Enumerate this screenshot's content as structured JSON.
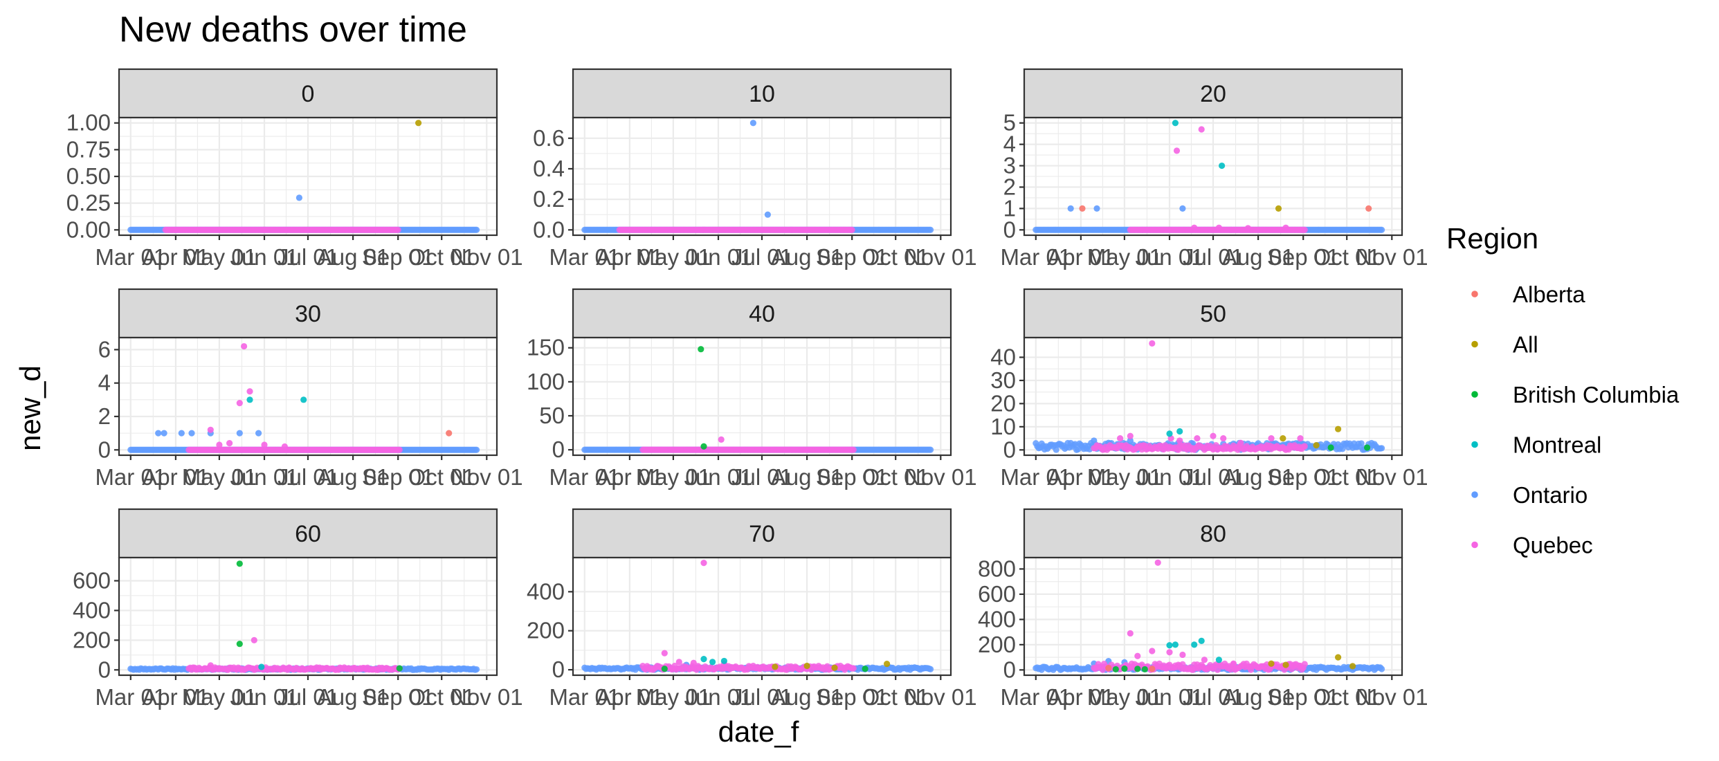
{
  "chart_data": {
    "type": "scatter",
    "title": "New deaths over time",
    "xlabel": "date_f",
    "ylabel": "new_d",
    "x_ticks": [
      "Mar 01",
      "Apr 01",
      "May 01",
      "Jun 01",
      "Jul 01",
      "Aug 01",
      "Sep 01",
      "Oct 01",
      "Nov 01"
    ],
    "x_range": [
      "2020-02-22",
      "2020-11-08"
    ],
    "legend": {
      "title": "Region",
      "position": "right",
      "entries": [
        {
          "name": "Alberta",
          "color": "#F8766D"
        },
        {
          "name": "All",
          "color": "#B79F00"
        },
        {
          "name": "British Columbia",
          "color": "#00BA38"
        },
        {
          "name": "Montreal",
          "color": "#00BFC4"
        },
        {
          "name": "Ontario",
          "color": "#619CFF"
        },
        {
          "name": "Quebec",
          "color": "#F564E3"
        }
      ]
    },
    "facets": [
      {
        "label": "0",
        "ylim": [
          -0.05,
          1.05
        ],
        "y_ticks": [
          "0.00",
          "0.25",
          "0.50",
          "0.75",
          "1.00"
        ],
        "y_tick_values": [
          0,
          0.25,
          0.5,
          0.75,
          1.0
        ],
        "series": [
          {
            "name": "Ontario",
            "baseline": {
              "value": 0,
              "from": "2020-03-01",
              "to": "2020-10-25"
            },
            "points": [
              {
                "x": "2020-06-25",
                "y": 0.3
              }
            ]
          },
          {
            "name": "Quebec",
            "baseline": {
              "value": 0,
              "from": "2020-03-25",
              "to": "2020-09-01"
            },
            "points": []
          },
          {
            "name": "All",
            "points": [
              {
                "x": "2020-09-15",
                "y": 1
              }
            ]
          }
        ]
      },
      {
        "label": "10",
        "ylim": [
          -0.035,
          0.735
        ],
        "y_ticks": [
          "0.0",
          "0.2",
          "0.4",
          "0.6"
        ],
        "y_tick_values": [
          0,
          0.2,
          0.4,
          0.6
        ],
        "series": [
          {
            "name": "Ontario",
            "baseline": {
              "value": 0,
              "from": "2020-03-01",
              "to": "2020-10-25"
            },
            "points": [
              {
                "x": "2020-06-25",
                "y": 0.7
              },
              {
                "x": "2020-07-05",
                "y": 0.1
              }
            ]
          },
          {
            "name": "Quebec",
            "baseline": {
              "value": 0,
              "from": "2020-03-25",
              "to": "2020-09-01"
            },
            "points": []
          }
        ]
      },
      {
        "label": "20",
        "ylim": [
          -0.25,
          5.25
        ],
        "y_ticks": [
          "0",
          "1",
          "2",
          "3",
          "4",
          "5"
        ],
        "y_tick_values": [
          0,
          1,
          2,
          3,
          4,
          5
        ],
        "series": [
          {
            "name": "Ontario",
            "baseline": {
              "value": 0,
              "from": "2020-03-01",
              "to": "2020-10-25"
            },
            "points": [
              {
                "x": "2020-03-25",
                "y": 1
              },
              {
                "x": "2020-04-12",
                "y": 1
              },
              {
                "x": "2020-06-10",
                "y": 1
              }
            ]
          },
          {
            "name": "Alberta",
            "points": [
              {
                "x": "2020-04-02",
                "y": 1
              },
              {
                "x": "2020-10-16",
                "y": 1
              }
            ]
          },
          {
            "name": "Montreal",
            "points": [
              {
                "x": "2020-06-05",
                "y": 5
              },
              {
                "x": "2020-07-07",
                "y": 3
              }
            ]
          },
          {
            "name": "Quebec",
            "baseline": {
              "value": 0,
              "from": "2020-05-05",
              "to": "2020-09-02"
            },
            "points": [
              {
                "x": "2020-06-06",
                "y": 3.7
              },
              {
                "x": "2020-06-23",
                "y": 4.7
              },
              {
                "x": "2020-06-18",
                "y": 0.1
              },
              {
                "x": "2020-07-05",
                "y": 0.1
              },
              {
                "x": "2020-07-25",
                "y": 0.08
              },
              {
                "x": "2020-08-20",
                "y": 0.1
              }
            ]
          },
          {
            "name": "All",
            "points": [
              {
                "x": "2020-08-15",
                "y": 1
              }
            ]
          }
        ]
      },
      {
        "label": "30",
        "ylim": [
          -0.32,
          6.72
        ],
        "y_ticks": [
          "0",
          "2",
          "4",
          "6"
        ],
        "y_tick_values": [
          0,
          2,
          4,
          6
        ],
        "series": [
          {
            "name": "Ontario",
            "baseline": {
              "value": 0,
              "from": "2020-03-01",
              "to": "2020-10-25"
            },
            "points": [
              {
                "x": "2020-03-20",
                "y": 1
              },
              {
                "x": "2020-03-24",
                "y": 1
              },
              {
                "x": "2020-04-05",
                "y": 1
              },
              {
                "x": "2020-04-12",
                "y": 1
              },
              {
                "x": "2020-04-25",
                "y": 1
              },
              {
                "x": "2020-05-15",
                "y": 1
              },
              {
                "x": "2020-05-28",
                "y": 1
              }
            ]
          },
          {
            "name": "Quebec",
            "baseline": {
              "value": 0,
              "from": "2020-04-10",
              "to": "2020-09-02"
            },
            "points": [
              {
                "x": "2020-04-25",
                "y": 1.2
              },
              {
                "x": "2020-05-15",
                "y": 2.8
              },
              {
                "x": "2020-05-18",
                "y": 6.2
              },
              {
                "x": "2020-05-22",
                "y": 3.5
              },
              {
                "x": "2020-05-01",
                "y": 0.3
              },
              {
                "x": "2020-05-08",
                "y": 0.4
              },
              {
                "x": "2020-06-01",
                "y": 0.3
              },
              {
                "x": "2020-06-15",
                "y": 0.2
              }
            ]
          },
          {
            "name": "Montreal",
            "points": [
              {
                "x": "2020-05-22",
                "y": 3
              },
              {
                "x": "2020-06-28",
                "y": 3
              }
            ]
          },
          {
            "name": "Alberta",
            "points": [
              {
                "x": "2020-10-06",
                "y": 1
              }
            ]
          }
        ]
      },
      {
        "label": "40",
        "ylim": [
          -8,
          165
        ],
        "y_ticks": [
          "0",
          "50",
          "100",
          "150"
        ],
        "y_tick_values": [
          0,
          50,
          100,
          150
        ],
        "series": [
          {
            "name": "Ontario",
            "baseline": {
              "value": 0,
              "from": "2020-03-01",
              "to": "2020-10-25"
            },
            "points": []
          },
          {
            "name": "Quebec",
            "baseline": {
              "value": 0,
              "from": "2020-04-10",
              "to": "2020-09-02"
            },
            "points": [
              {
                "x": "2020-06-03",
                "y": 15
              }
            ]
          },
          {
            "name": "British Columbia",
            "points": [
              {
                "x": "2020-05-20",
                "y": 148
              },
              {
                "x": "2020-05-22",
                "y": 5
              }
            ]
          }
        ]
      },
      {
        "label": "50",
        "ylim": [
          -2.3,
          48.5
        ],
        "y_ticks": [
          "0",
          "10",
          "20",
          "30",
          "40"
        ],
        "y_tick_values": [
          0,
          10,
          20,
          30,
          40
        ],
        "series": [
          {
            "name": "Ontario",
            "baseline": {
              "value": 1.5,
              "from": "2020-03-01",
              "to": "2020-10-25"
            },
            "points": [
              {
                "x": "2020-04-10",
                "y": 4
              },
              {
                "x": "2020-04-20",
                "y": 3
              },
              {
                "x": "2020-05-05",
                "y": 4
              }
            ]
          },
          {
            "name": "Quebec",
            "baseline": {
              "value": 1,
              "from": "2020-04-10",
              "to": "2020-09-02"
            },
            "points": [
              {
                "x": "2020-05-20",
                "y": 46
              },
              {
                "x": "2020-04-28",
                "y": 5
              },
              {
                "x": "2020-05-05",
                "y": 6
              },
              {
                "x": "2020-06-02",
                "y": 5
              },
              {
                "x": "2020-06-08",
                "y": 4
              },
              {
                "x": "2020-06-20",
                "y": 5
              },
              {
                "x": "2020-07-01",
                "y": 6
              },
              {
                "x": "2020-07-08",
                "y": 5
              },
              {
                "x": "2020-07-20",
                "y": 3
              },
              {
                "x": "2020-08-10",
                "y": 5
              },
              {
                "x": "2020-08-30",
                "y": 5
              }
            ]
          },
          {
            "name": "Montreal",
            "points": [
              {
                "x": "2020-06-01",
                "y": 7
              },
              {
                "x": "2020-06-08",
                "y": 8
              }
            ]
          },
          {
            "name": "All",
            "points": [
              {
                "x": "2020-08-18",
                "y": 5
              },
              {
                "x": "2020-09-25",
                "y": 9
              },
              {
                "x": "2020-09-10",
                "y": 2
              }
            ]
          },
          {
            "name": "British Columbia",
            "points": [
              {
                "x": "2020-10-15",
                "y": 1
              },
              {
                "x": "2020-09-20",
                "y": 1
              }
            ]
          }
        ]
      },
      {
        "label": "60",
        "ylim": [
          -36,
          756
        ],
        "y_ticks": [
          "0",
          "200",
          "400",
          "600"
        ],
        "y_tick_values": [
          0,
          200,
          400,
          600
        ],
        "series": [
          {
            "name": "Ontario",
            "baseline": {
              "value": 5,
              "from": "2020-03-01",
              "to": "2020-10-25"
            },
            "points": []
          },
          {
            "name": "Quebec",
            "baseline": {
              "value": 8,
              "from": "2020-04-10",
              "to": "2020-09-02"
            },
            "points": [
              {
                "x": "2020-05-25",
                "y": 200
              },
              {
                "x": "2020-04-25",
                "y": 30
              }
            ]
          },
          {
            "name": "British Columbia",
            "points": [
              {
                "x": "2020-05-15",
                "y": 715
              },
              {
                "x": "2020-05-15",
                "y": 175
              },
              {
                "x": "2020-09-02",
                "y": 10
              }
            ]
          },
          {
            "name": "Montreal",
            "points": [
              {
                "x": "2020-05-30",
                "y": 20
              }
            ]
          }
        ]
      },
      {
        "label": "70",
        "ylim": [
          -28,
          575
        ],
        "y_ticks": [
          "0",
          "200",
          "400"
        ],
        "y_tick_values": [
          0,
          200,
          400
        ],
        "series": [
          {
            "name": "Ontario",
            "baseline": {
              "value": 6,
              "from": "2020-03-01",
              "to": "2020-10-25"
            },
            "points": [
              {
                "x": "2020-04-20",
                "y": 15
              },
              {
                "x": "2020-05-10",
                "y": 25
              }
            ]
          },
          {
            "name": "Quebec",
            "baseline": {
              "value": 10,
              "from": "2020-04-10",
              "to": "2020-09-02"
            },
            "points": [
              {
                "x": "2020-05-22",
                "y": 548
              },
              {
                "x": "2020-04-25",
                "y": 85
              },
              {
                "x": "2020-05-05",
                "y": 40
              },
              {
                "x": "2020-05-15",
                "y": 35
              },
              {
                "x": "2020-06-05",
                "y": 30
              }
            ]
          },
          {
            "name": "Montreal",
            "points": [
              {
                "x": "2020-05-22",
                "y": 55
              },
              {
                "x": "2020-06-05",
                "y": 45
              },
              {
                "x": "2020-05-28",
                "y": 40
              }
            ]
          },
          {
            "name": "All",
            "points": [
              {
                "x": "2020-07-10",
                "y": 15
              },
              {
                "x": "2020-08-01",
                "y": 20
              },
              {
                "x": "2020-09-25",
                "y": 30
              },
              {
                "x": "2020-08-20",
                "y": 10
              }
            ]
          },
          {
            "name": "British Columbia",
            "points": [
              {
                "x": "2020-04-25",
                "y": 5
              },
              {
                "x": "2020-09-10",
                "y": 5
              }
            ]
          }
        ]
      },
      {
        "label": "80",
        "ylim": [
          -42,
          890
        ],
        "y_ticks": [
          "0",
          "200",
          "400",
          "600",
          "800"
        ],
        "y_tick_values": [
          0,
          200,
          400,
          600,
          800
        ],
        "series": [
          {
            "name": "Ontario",
            "baseline": {
              "value": 12,
              "from": "2020-03-01",
              "to": "2020-10-25"
            },
            "points": [
              {
                "x": "2020-04-10",
                "y": 50
              },
              {
                "x": "2020-04-20",
                "y": 70
              },
              {
                "x": "2020-05-01",
                "y": 60
              }
            ]
          },
          {
            "name": "Quebec",
            "baseline": {
              "value": 25,
              "from": "2020-04-10",
              "to": "2020-09-02"
            },
            "points": [
              {
                "x": "2020-05-24",
                "y": 850
              },
              {
                "x": "2020-05-05",
                "y": 290
              },
              {
                "x": "2020-05-10",
                "y": 110
              },
              {
                "x": "2020-05-20",
                "y": 150
              },
              {
                "x": "2020-06-01",
                "y": 140
              },
              {
                "x": "2020-06-10",
                "y": 120
              },
              {
                "x": "2020-06-25",
                "y": 80
              },
              {
                "x": "2020-07-15",
                "y": 50
              }
            ]
          },
          {
            "name": "Montreal",
            "points": [
              {
                "x": "2020-06-01",
                "y": 195
              },
              {
                "x": "2020-06-05",
                "y": 200
              },
              {
                "x": "2020-06-18",
                "y": 200
              },
              {
                "x": "2020-06-23",
                "y": 230
              },
              {
                "x": "2020-07-05",
                "y": 80
              }
            ]
          },
          {
            "name": "All",
            "points": [
              {
                "x": "2020-08-10",
                "y": 50
              },
              {
                "x": "2020-08-20",
                "y": 40
              },
              {
                "x": "2020-09-25",
                "y": 100
              },
              {
                "x": "2020-10-05",
                "y": 30
              }
            ]
          },
          {
            "name": "British Columbia",
            "points": [
              {
                "x": "2020-04-25",
                "y": 5
              },
              {
                "x": "2020-05-01",
                "y": 10
              },
              {
                "x": "2020-05-10",
                "y": 8
              },
              {
                "x": "2020-05-15",
                "y": 5
              }
            ]
          },
          {
            "name": "Alberta",
            "points": [
              {
                "x": "2020-04-20",
                "y": 15
              },
              {
                "x": "2020-05-20",
                "y": 8
              }
            ]
          }
        ]
      }
    ]
  }
}
